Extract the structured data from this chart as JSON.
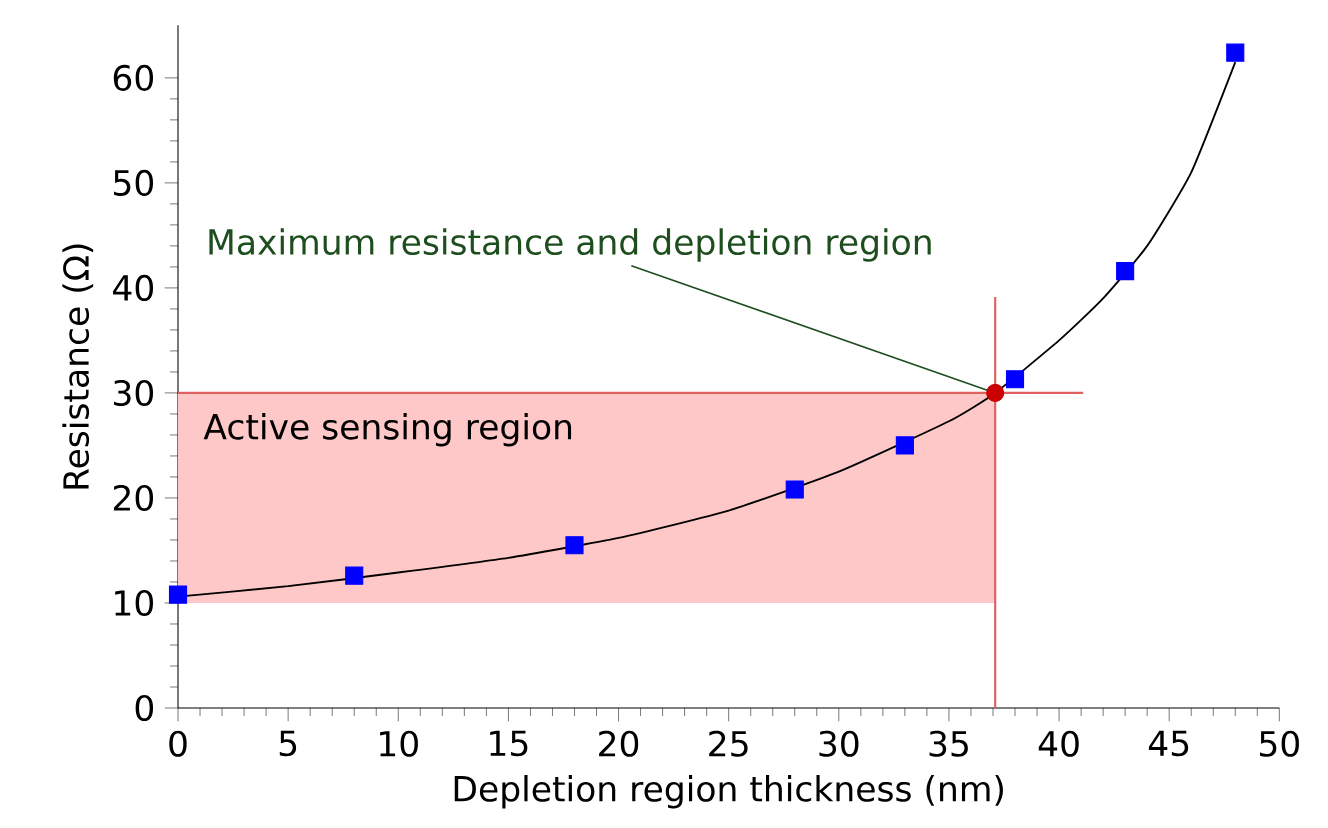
{
  "chart_data": {
    "type": "scatter",
    "xlabel": "Depletion region thickness (nm)",
    "ylabel": "Resistance (Ω)",
    "xlim": [
      0,
      50
    ],
    "ylim": [
      0,
      65
    ],
    "xticks": [
      0,
      5,
      10,
      15,
      20,
      25,
      30,
      35,
      40,
      45,
      50
    ],
    "yticks": [
      0,
      10,
      20,
      30,
      40,
      50,
      60
    ],
    "grid": false,
    "series": [
      {
        "type": "line",
        "color": "#000000",
        "marker": "none",
        "x": [
          0,
          5,
          10,
          15,
          20,
          25,
          30,
          35,
          37.1,
          40,
          42,
          44,
          46,
          48
        ],
        "values": [
          10.6,
          11.6,
          12.9,
          14.3,
          16.2,
          18.8,
          22.5,
          27.3,
          30,
          35,
          39,
          44,
          51,
          61.5
        ]
      },
      {
        "color": "#0000ff",
        "marker": "square",
        "x": [
          0,
          8,
          18,
          28,
          33,
          38,
          43,
          48
        ],
        "values": [
          10.8,
          12.6,
          15.5,
          20.8,
          25.0,
          31.3,
          41.6,
          62.4
        ]
      },
      {
        "color": "#cc0000",
        "marker": "circle",
        "x": [
          37.1
        ],
        "values": [
          30
        ]
      }
    ],
    "ref_lines": [
      {
        "axis": "x",
        "value": 37.1,
        "color": "#e06060"
      },
      {
        "axis": "y",
        "value": 30,
        "color": "#e06060"
      }
    ],
    "bands": [
      {
        "axis": "y",
        "from": 10,
        "to": 30,
        "label": "Active sensing region",
        "color": "#ffc8c8"
      }
    ],
    "annotations": [
      {
        "text": "Maximum resistance and depletion region",
        "x": 37.1,
        "y": 30
      }
    ]
  }
}
